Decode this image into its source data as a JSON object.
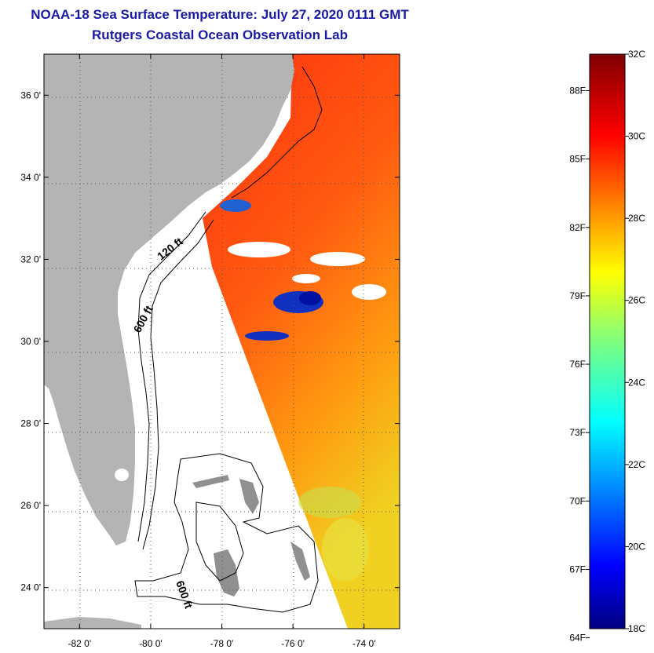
{
  "title": {
    "line1": "NOAA-18 Sea Surface Temperature:  July 27, 2020 0111 GMT",
    "line2": "Rutgers Coastal Ocean Observation Lab"
  },
  "map": {
    "lon_range": [
      -83,
      -73
    ],
    "lat_range": [
      23,
      37
    ],
    "lon_ticks": [
      {
        "value": -82,
        "label": "-82 0'"
      },
      {
        "value": -80,
        "label": "-80 0'"
      },
      {
        "value": -78,
        "label": "-78 0'"
      },
      {
        "value": -76,
        "label": "-76 0'"
      },
      {
        "value": -74,
        "label": "-74 0'"
      }
    ],
    "lat_ticks": [
      {
        "value": 24,
        "label": "24 0'"
      },
      {
        "value": 26,
        "label": "26 0'"
      },
      {
        "value": 28,
        "label": "28 0'"
      },
      {
        "value": 30,
        "label": "30 0'"
      },
      {
        "value": 32,
        "label": "32 0'"
      },
      {
        "value": 34,
        "label": "34 0'"
      },
      {
        "value": 36,
        "label": "36 0'"
      }
    ],
    "contour_labels": [
      {
        "text": "120 ft",
        "lon": -79.3,
        "lat": 32.3
      },
      {
        "text": "600 ft",
        "lon": -79.3,
        "lat": 30.5
      },
      {
        "text": "600 ft",
        "lon": -78.9,
        "lat": 23.6
      }
    ],
    "colors": {
      "land": "#b4b4b4",
      "ocean_nodata": "#ffffff",
      "gridline": "#555555"
    }
  },
  "colorbar": {
    "min_c": 18,
    "max_c": 32,
    "celsius_ticks": [
      {
        "value": 32,
        "label": "32C"
      },
      {
        "value": 30,
        "label": "30C"
      },
      {
        "value": 28,
        "label": "28C"
      },
      {
        "value": 26,
        "label": "26C"
      },
      {
        "value": 24,
        "label": "24C"
      },
      {
        "value": 22,
        "label": "22C"
      },
      {
        "value": 20,
        "label": "20C"
      },
      {
        "value": 18,
        "label": "18C"
      }
    ],
    "fahrenheit_ticks": [
      {
        "value": 88,
        "label": "88F"
      },
      {
        "value": 85,
        "label": "85F"
      },
      {
        "value": 82,
        "label": "82F"
      },
      {
        "value": 79,
        "label": "79F"
      },
      {
        "value": 76,
        "label": "76F"
      },
      {
        "value": 73,
        "label": "73F"
      },
      {
        "value": 70,
        "label": "70F"
      },
      {
        "value": 67,
        "label": "67F"
      },
      {
        "value": 64,
        "label": "64F"
      }
    ]
  }
}
